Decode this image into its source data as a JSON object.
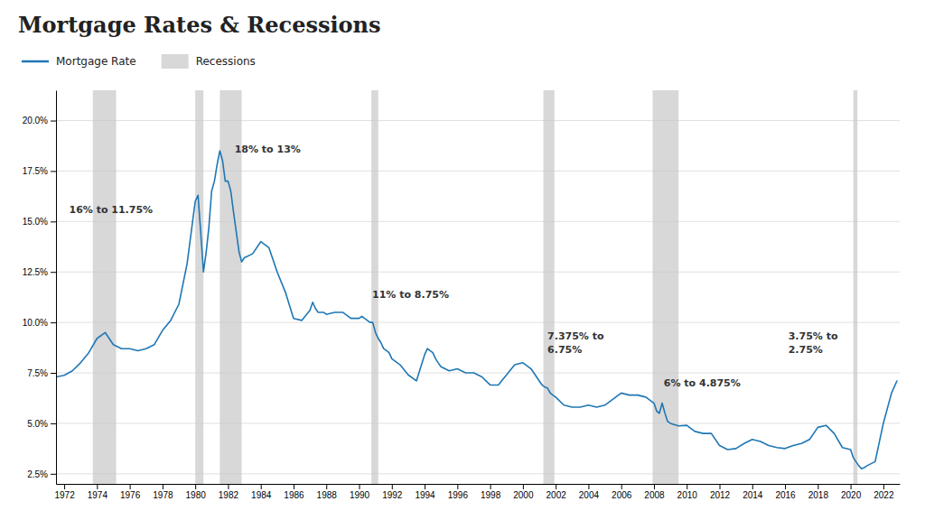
{
  "chart_data": {
    "type": "line",
    "title": "Mortgage Rates & Recessions",
    "xlim": [
      1971.5,
      2023.0
    ],
    "ylim": [
      2.0,
      21.5
    ],
    "xticks": [
      1972,
      1974,
      1976,
      1978,
      1980,
      1982,
      1984,
      1986,
      1988,
      1990,
      1992,
      1994,
      1996,
      1998,
      2000,
      2002,
      2004,
      2006,
      2008,
      2010,
      2012,
      2014,
      2016,
      2018,
      2020,
      2022
    ],
    "yticks": [
      {
        "value": 2.5,
        "label": "2.5%"
      },
      {
        "value": 5.0,
        "label": "5.0%"
      },
      {
        "value": 7.5,
        "label": "7.5%"
      },
      {
        "value": 10.0,
        "label": "10.0%"
      },
      {
        "value": 12.5,
        "label": "12.5%"
      },
      {
        "value": 15.0,
        "label": "15.0%"
      },
      {
        "value": 17.5,
        "label": "17.5%"
      },
      {
        "value": 20.0,
        "label": "20.0%"
      }
    ],
    "grid": "y",
    "x": [
      1971.5,
      1972.0,
      1972.5,
      1973.0,
      1973.5,
      1974.0,
      1974.5,
      1975.0,
      1975.5,
      1976.0,
      1976.5,
      1977.0,
      1977.5,
      1978.0,
      1978.5,
      1979.0,
      1979.5,
      1980.0,
      1980.17,
      1980.33,
      1980.5,
      1980.67,
      1980.83,
      1981.0,
      1981.17,
      1981.33,
      1981.5,
      1981.67,
      1981.83,
      1982.0,
      1982.17,
      1982.33,
      1982.5,
      1982.67,
      1982.83,
      1983.0,
      1983.5,
      1984.0,
      1984.5,
      1985.0,
      1985.5,
      1986.0,
      1986.5,
      1987.0,
      1987.17,
      1987.33,
      1987.5,
      1987.67,
      1987.83,
      1988.0,
      1988.5,
      1989.0,
      1989.5,
      1990.0,
      1990.17,
      1990.33,
      1990.5,
      1990.67,
      1990.83,
      1991.0,
      1991.17,
      1991.33,
      1991.5,
      1991.67,
      1991.83,
      1992.0,
      1992.5,
      1993.0,
      1993.5,
      1994.0,
      1994.17,
      1994.33,
      1994.5,
      1994.67,
      1994.83,
      1995.0,
      1995.5,
      1996.0,
      1996.5,
      1997.0,
      1997.5,
      1998.0,
      1998.5,
      1999.0,
      1999.5,
      2000.0,
      2000.5,
      2001.0,
      2001.17,
      2001.33,
      2001.5,
      2001.67,
      2001.83,
      2002.0,
      2002.5,
      2003.0,
      2003.5,
      2004.0,
      2004.5,
      2005.0,
      2005.5,
      2006.0,
      2006.5,
      2007.0,
      2007.5,
      2008.0,
      2008.17,
      2008.33,
      2008.5,
      2008.67,
      2008.83,
      2009.0,
      2009.5,
      2010.0,
      2010.5,
      2011.0,
      2011.5,
      2012.0,
      2012.5,
      2013.0,
      2013.5,
      2014.0,
      2014.5,
      2015.0,
      2015.5,
      2016.0,
      2016.5,
      2017.0,
      2017.5,
      2018.0,
      2018.5,
      2019.0,
      2019.5,
      2020.0,
      2020.17,
      2020.33,
      2020.5,
      2020.67,
      2020.83,
      2021.0,
      2021.5,
      2022.0,
      2022.5,
      2022.83
    ],
    "series": [
      {
        "name": "Mortgage Rate",
        "type": "line",
        "values": [
          7.3,
          7.38,
          7.6,
          8.0,
          8.5,
          9.2,
          9.5,
          8.9,
          8.7,
          8.7,
          8.6,
          8.7,
          8.9,
          9.6,
          10.1,
          10.9,
          12.9,
          16.0,
          16.3,
          14.5,
          12.5,
          13.5,
          14.7,
          16.5,
          17.0,
          17.8,
          18.5,
          18.0,
          17.0,
          17.0,
          16.5,
          15.5,
          14.5,
          13.5,
          13.0,
          13.2,
          13.4,
          14.0,
          13.7,
          12.5,
          11.5,
          10.2,
          10.1,
          10.6,
          11.0,
          10.7,
          10.5,
          10.5,
          10.5,
          10.4,
          10.5,
          10.5,
          10.2,
          10.2,
          10.3,
          10.2,
          10.1,
          10.0,
          10.0,
          9.5,
          9.2,
          9.0,
          8.7,
          8.6,
          8.5,
          8.2,
          7.9,
          7.4,
          7.1,
          8.4,
          8.7,
          8.6,
          8.5,
          8.2,
          8.0,
          7.8,
          7.6,
          7.7,
          7.5,
          7.5,
          7.3,
          6.9,
          6.9,
          7.4,
          7.9,
          8.0,
          7.7,
          7.1,
          6.9,
          6.8,
          6.75,
          6.5,
          6.4,
          6.3,
          5.9,
          5.8,
          5.8,
          5.9,
          5.8,
          5.9,
          6.2,
          6.5,
          6.4,
          6.4,
          6.3,
          6.0,
          5.6,
          5.5,
          6.0,
          5.5,
          5.1,
          5.0,
          4.875,
          4.9,
          4.6,
          4.5,
          4.5,
          3.9,
          3.7,
          3.75,
          4.0,
          4.2,
          4.1,
          3.9,
          3.8,
          3.75,
          3.9,
          4.0,
          4.2,
          4.8,
          4.9,
          4.5,
          3.8,
          3.7,
          3.3,
          3.1,
          2.9,
          2.75,
          2.8,
          2.9,
          3.1,
          5.0,
          6.5,
          7.1
        ]
      },
      {
        "name": "Recessions",
        "type": "span",
        "color": "#c8c8c8",
        "values": [
          [
            1973.75,
            1975.17
          ],
          [
            1980.0,
            1980.5
          ],
          [
            1981.5,
            1982.83
          ],
          [
            1990.75,
            1991.17
          ],
          [
            2001.25,
            2001.92
          ],
          [
            2007.92,
            2009.5
          ],
          [
            2020.17,
            2020.42
          ]
        ]
      }
    ],
    "annotations": [
      {
        "x": 1972.3,
        "y": 15.6,
        "text": "16% to 11.75%"
      },
      {
        "x": 1982.4,
        "y": 18.6,
        "text": "18% to 13%"
      },
      {
        "x": 1990.8,
        "y": 11.4,
        "text": "11% to 8.75%"
      },
      {
        "x": 2001.5,
        "y": 9.0,
        "text": "7.375% to\n6.75%"
      },
      {
        "x": 2008.6,
        "y": 7.0,
        "text": "6% to 4.875%"
      },
      {
        "x": 2016.2,
        "y": 9.0,
        "text": "3.75% to\n2.75%"
      }
    ]
  }
}
